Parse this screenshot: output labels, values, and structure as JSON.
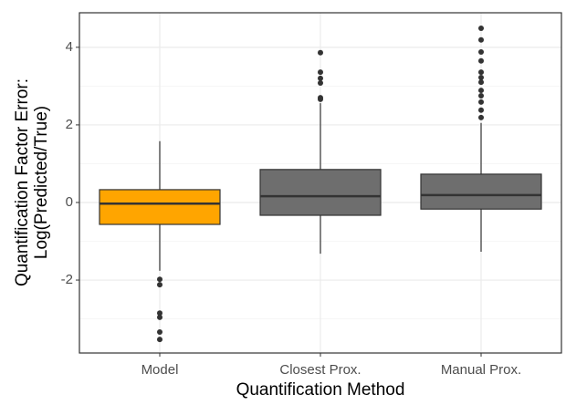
{
  "chart_data": {
    "type": "box",
    "xlabel": "Quantification Method",
    "ylabel": [
      "Quantification Factor Error:",
      "Log(Predicted/True)"
    ],
    "categories": [
      "Model",
      "Closest Prox.",
      "Manual Prox."
    ],
    "colors": [
      "#ffa500",
      "#6e6e6e",
      "#6e6e6e"
    ],
    "boxes": [
      {
        "min": -1.76,
        "q1": -0.565,
        "median": -0.03,
        "q3": 0.33,
        "max": 1.58,
        "outliers": [
          -1.98,
          -2.12,
          -2.85,
          -2.96,
          -3.34,
          -3.53
        ]
      },
      {
        "min": -1.32,
        "q1": -0.33,
        "median": 0.16,
        "q3": 0.85,
        "max": 2.56,
        "outliers": [
          2.66,
          2.7,
          3.08,
          3.2,
          3.36,
          3.86
        ]
      },
      {
        "min": -1.27,
        "q1": -0.17,
        "median": 0.19,
        "q3": 0.73,
        "max": 2.05,
        "outliers": [
          2.19,
          2.38,
          2.59,
          2.75,
          2.89,
          3.1,
          3.22,
          3.36,
          3.65,
          3.88,
          4.19,
          4.49
        ]
      }
    ],
    "ylim": [
      -3.88,
      4.89
    ],
    "yticks": [
      -2,
      0,
      2,
      4
    ],
    "yminor": [
      -3,
      -1,
      1,
      3
    ],
    "grid": true
  }
}
